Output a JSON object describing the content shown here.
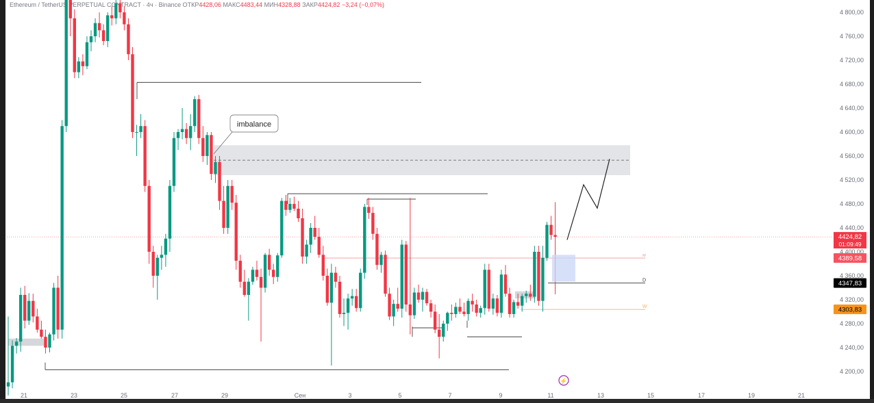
{
  "header": {
    "symbol": "Ethereum / TetherUS PERPETUAL CONTRACT · 4ч · Binance",
    "open_label": "ОТКР",
    "open_value": "4428,06",
    "high_label": "МАКС",
    "high_value": "4483,44",
    "low_label": "МИН",
    "low_value": "4328,88",
    "close_label": "ЗАКР",
    "close_value": "4424,82",
    "change": "−3,24 (−0,07%)"
  },
  "annotation": {
    "imbalance_label": "imbalance"
  },
  "level_labels": {
    "m": "м",
    "d": "D",
    "w": "W"
  },
  "price_tags": {
    "current_price": "4424,82",
    "countdown": "01:09:49",
    "monthly": "4389,58",
    "daily": "4347,83",
    "weekly": "4303,83"
  },
  "colors": {
    "up": "#089981",
    "down": "#f23645",
    "zone": "#e3e4e8",
    "current_tag": "#f23645",
    "monthly_tag": "#f7525f",
    "daily_tag": "#000000",
    "weekly_tag": "#f7931a",
    "weekly_line": "#f7b267",
    "monthly_line": "#f5a3a8",
    "event_icon": "#9c27b0"
  },
  "chart_data": {
    "type": "candlestick",
    "symbol": "ETHUSDT.P",
    "timeframe": "4h",
    "y_axis": {
      "range": [
        4185,
        4815
      ],
      "ticks": [
        "4 800,00",
        "4 760,00",
        "4 720,00",
        "4 680,00",
        "4 640,00",
        "4 600,00",
        "4 560,00",
        "4 520,00",
        "4 480,00",
        "4 440,00",
        "4 400,00",
        "4 360,00",
        "4 320,00",
        "4 280,00",
        "4 240,00",
        "4 200,00"
      ]
    },
    "x_axis": {
      "ticks": [
        "21",
        "23",
        "25",
        "27",
        "29",
        "Сен",
        "3",
        "5",
        "7",
        "9",
        "11",
        "13",
        "15",
        "17",
        "19",
        "21"
      ]
    },
    "candles": [
      [
        4175,
        4292,
        4160,
        4182
      ],
      [
        4182,
        4252,
        4172,
        4243
      ],
      [
        4243,
        4256,
        4230,
        4250
      ],
      [
        4250,
        4340,
        4233,
        4328
      ],
      [
        4328,
        4343,
        4272,
        4285
      ],
      [
        4285,
        4331,
        4278,
        4318
      ],
      [
        4318,
        4330,
        4282,
        4292
      ],
      [
        4292,
        4305,
        4265,
        4270
      ],
      [
        4270,
        4285,
        4255,
        4258
      ],
      [
        4258,
        4270,
        4230,
        4240
      ],
      [
        4240,
        4265,
        4232,
        4262
      ],
      [
        4262,
        4348,
        4252,
        4340
      ],
      [
        4340,
        4360,
        4255,
        4270
      ],
      [
        4270,
        4620,
        4255,
        4610
      ],
      [
        4610,
        4850,
        4600,
        4830
      ],
      [
        4830,
        4850,
        4760,
        4790
      ],
      [
        4790,
        4805,
        4690,
        4700
      ],
      [
        4700,
        4725,
        4690,
        4718
      ],
      [
        4718,
        4730,
        4695,
        4710
      ],
      [
        4710,
        4760,
        4705,
        4750
      ],
      [
        4750,
        4770,
        4735,
        4760
      ],
      [
        4760,
        4790,
        4750,
        4782
      ],
      [
        4782,
        4800,
        4758,
        4770
      ],
      [
        4770,
        4780,
        4745,
        4752
      ],
      [
        4752,
        4800,
        4742,
        4795
      ],
      [
        4795,
        4810,
        4778,
        4790
      ],
      [
        4790,
        4825,
        4780,
        4815
      ],
      [
        4815,
        4830,
        4790,
        4800
      ],
      [
        4800,
        4810,
        4770,
        4780
      ],
      [
        4780,
        4790,
        4720,
        4730
      ],
      [
        4730,
        4742,
        4590,
        4600
      ],
      [
        4600,
        4612,
        4560,
        4600
      ],
      [
        4600,
        4630,
        4590,
        4610
      ],
      [
        4610,
        4620,
        4500,
        4510
      ],
      [
        4510,
        4520,
        4380,
        4400
      ],
      [
        4400,
        4410,
        4340,
        4360
      ],
      [
        4360,
        4395,
        4320,
        4390
      ],
      [
        4390,
        4410,
        4370,
        4395
      ],
      [
        4395,
        4430,
        4375,
        4422
      ],
      [
        4422,
        4520,
        4400,
        4510
      ],
      [
        4510,
        4600,
        4500,
        4590
      ],
      [
        4590,
        4605,
        4570,
        4600
      ],
      [
        4600,
        4640,
        4588,
        4605
      ],
      [
        4605,
        4615,
        4580,
        4590
      ],
      [
        4590,
        4630,
        4570,
        4610
      ],
      [
        4610,
        4660,
        4600,
        4655
      ],
      [
        4655,
        4662,
        4580,
        4590
      ],
      [
        4590,
        4610,
        4550,
        4560
      ],
      [
        4560,
        4600,
        4545,
        4595
      ],
      [
        4595,
        4600,
        4520,
        4530
      ],
      [
        4530,
        4560,
        4515,
        4550
      ],
      [
        4550,
        4560,
        4470,
        4485
      ],
      [
        4485,
        4510,
        4430,
        4440
      ],
      [
        4440,
        4520,
        4430,
        4510
      ],
      [
        4510,
        4520,
        4470,
        4482
      ],
      [
        4482,
        4495,
        4370,
        4385
      ],
      [
        4385,
        4395,
        4340,
        4350
      ],
      [
        4350,
        4370,
        4325,
        4328
      ],
      [
        4328,
        4356,
        4285,
        4350
      ],
      [
        4350,
        4375,
        4345,
        4370
      ],
      [
        4370,
        4385,
        4352,
        4358
      ],
      [
        4358,
        4372,
        4250,
        4340
      ],
      [
        4340,
        4398,
        4332,
        4395
      ],
      [
        4395,
        4405,
        4360,
        4370
      ],
      [
        4370,
        4380,
        4346,
        4358
      ],
      [
        4358,
        4398,
        4350,
        4394
      ],
      [
        4394,
        4490,
        4390,
        4485
      ],
      [
        4485,
        4495,
        4460,
        4470
      ],
      [
        4470,
        4490,
        4465,
        4480
      ],
      [
        4480,
        4492,
        4468,
        4472
      ],
      [
        4472,
        4485,
        4450,
        4456
      ],
      [
        4456,
        4472,
        4380,
        4392
      ],
      [
        4392,
        4420,
        4380,
        4412
      ],
      [
        4412,
        4448,
        4398,
        4440
      ],
      [
        4440,
        4460,
        4420,
        4425
      ],
      [
        4425,
        4440,
        4390,
        4395
      ],
      [
        4395,
        4410,
        4352,
        4360
      ],
      [
        4360,
        4372,
        4310,
        4315
      ],
      [
        4315,
        4380,
        4210,
        4365
      ],
      [
        4365,
        4375,
        4340,
        4350
      ],
      [
        4350,
        4360,
        4290,
        4296
      ],
      [
        4296,
        4322,
        4276,
        4298
      ],
      [
        4298,
        4330,
        4270,
        4322
      ],
      [
        4322,
        4338,
        4310,
        4326
      ],
      [
        4326,
        4338,
        4300,
        4306
      ],
      [
        4306,
        4372,
        4300,
        4365
      ],
      [
        4365,
        4480,
        4355,
        4475
      ],
      [
        4475,
        4490,
        4455,
        4465
      ],
      [
        4465,
        4475,
        4420,
        4430
      ],
      [
        4430,
        4440,
        4370,
        4378
      ],
      [
        4378,
        4400,
        4365,
        4395
      ],
      [
        4395,
        4402,
        4325,
        4330
      ],
      [
        4330,
        4340,
        4286,
        4292
      ],
      [
        4292,
        4320,
        4276,
        4313
      ],
      [
        4313,
        4340,
        4300,
        4305
      ],
      [
        4305,
        4420,
        4290,
        4412
      ],
      [
        4412,
        4418,
        4300,
        4312
      ],
      [
        4312,
        4490,
        4262,
        4294
      ],
      [
        4294,
        4340,
        4288,
        4332
      ],
      [
        4332,
        4345,
        4315,
        4320
      ],
      [
        4320,
        4340,
        4300,
        4333
      ],
      [
        4333,
        4338,
        4310,
        4314
      ],
      [
        4314,
        4320,
        4290,
        4300
      ],
      [
        4300,
        4312,
        4264,
        4270
      ],
      [
        4270,
        4296,
        4222,
        4258
      ],
      [
        4258,
        4285,
        4250,
        4280
      ],
      [
        4280,
        4300,
        4268,
        4298
      ],
      [
        4298,
        4312,
        4285,
        4296
      ],
      [
        4296,
        4315,
        4290,
        4308
      ],
      [
        4308,
        4322,
        4296,
        4300
      ],
      [
        4300,
        4315,
        4292,
        4296
      ],
      [
        4296,
        4322,
        4285,
        4318
      ],
      [
        4318,
        4330,
        4300,
        4312
      ],
      [
        4312,
        4320,
        4292,
        4298
      ],
      [
        4298,
        4310,
        4290,
        4306
      ],
      [
        4306,
        4380,
        4295,
        4370
      ],
      [
        4370,
        4380,
        4300,
        4305
      ],
      [
        4305,
        4330,
        4295,
        4322
      ],
      [
        4322,
        4328,
        4292,
        4298
      ],
      [
        4298,
        4370,
        4290,
        4362
      ],
      [
        4362,
        4378,
        4325,
        4330
      ],
      [
        4330,
        4340,
        4290,
        4296
      ],
      [
        4296,
        4320,
        4290,
        4316
      ],
      [
        4316,
        4330,
        4305,
        4310
      ],
      [
        4310,
        4330,
        4300,
        4326
      ],
      [
        4326,
        4335,
        4315,
        4330
      ],
      [
        4330,
        4345,
        4318,
        4325
      ],
      [
        4325,
        4410,
        4315,
        4400
      ],
      [
        4400,
        4410,
        4310,
        4318
      ],
      [
        4318,
        4410,
        4300,
        4390
      ],
      [
        4390,
        4450,
        4385,
        4445
      ],
      [
        4445,
        4460,
        4420,
        4428
      ],
      [
        4428,
        4483,
        4329,
        4425
      ]
    ],
    "annotations": {
      "horizontal_lines": [
        4683,
        4497,
        4488,
        4273,
        4258,
        4203
      ],
      "supply_zone": {
        "from": 4528,
        "to": 4578,
        "midline": 4553
      },
      "projection_path": [
        4420,
        4512,
        4473,
        4555
      ],
      "monthly_level": 4389.58,
      "daily_level": 4347.83,
      "weekly_level": 4303.83
    }
  }
}
